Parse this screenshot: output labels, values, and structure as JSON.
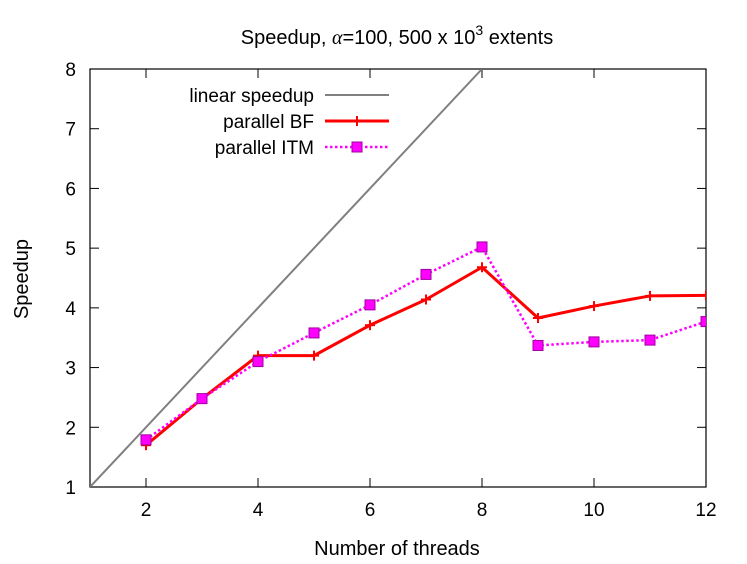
{
  "chart_data": {
    "type": "line",
    "title_main": "Speedup, ",
    "title_alpha": "α",
    "title_mid": "=100, 500 x 10",
    "title_sup": "3",
    "title_end": " extents",
    "xlabel": "Number of threads",
    "ylabel": "Speedup",
    "xlim": [
      1,
      12
    ],
    "ylim": [
      1,
      8
    ],
    "xticks": [
      2,
      4,
      6,
      8,
      10,
      12
    ],
    "yticks": [
      1,
      2,
      3,
      4,
      5,
      6,
      7,
      8
    ],
    "grid": false,
    "legend_position": "top-left",
    "series": [
      {
        "name": "linear speedup",
        "color": "#808080",
        "marker": "none",
        "dash": "solid",
        "x": [
          1,
          8
        ],
        "y": [
          1,
          8
        ]
      },
      {
        "name": "parallel BF",
        "color": "#ff0000",
        "marker": "plus",
        "dash": "solid",
        "x": [
          2,
          3,
          4,
          5,
          6,
          7,
          8,
          9,
          10,
          11,
          12
        ],
        "y": [
          1.7,
          2.48,
          3.2,
          3.2,
          3.71,
          4.14,
          4.68,
          3.83,
          4.03,
          4.2,
          4.21
        ]
      },
      {
        "name": "parallel ITM",
        "color": "#ff00ff",
        "marker": "square",
        "dash": "dotted",
        "x": [
          2,
          3,
          4,
          5,
          6,
          7,
          8,
          9,
          10,
          11,
          12
        ],
        "y": [
          1.79,
          2.48,
          3.1,
          3.58,
          4.05,
          4.56,
          5.02,
          3.37,
          3.43,
          3.46,
          3.77
        ]
      }
    ]
  }
}
